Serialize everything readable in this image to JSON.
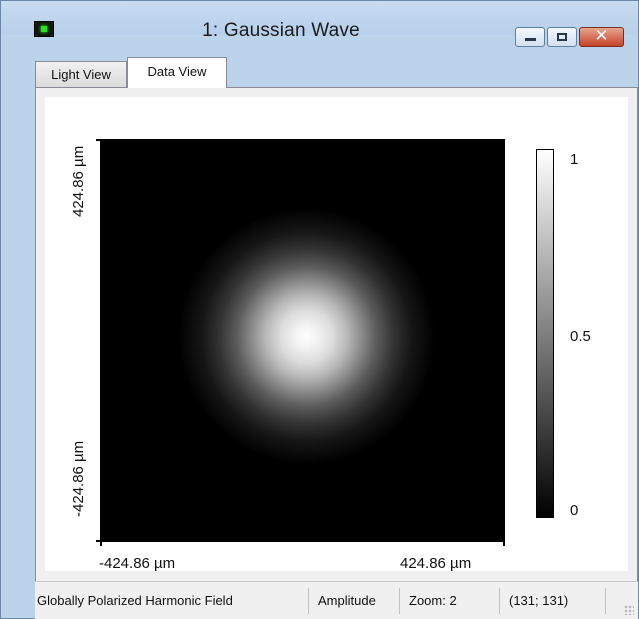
{
  "window": {
    "title": "1: Gaussian Wave",
    "icon": "green-led-window-icon",
    "controls": {
      "minimize_icon": "minimize-icon",
      "maximize_icon": "maximize-icon",
      "close_glyph": "✕"
    }
  },
  "tabs": [
    {
      "label": "Light View",
      "active": false
    },
    {
      "label": "Data View",
      "active": true
    }
  ],
  "plot": {
    "y_axis": {
      "top_label": "424.86 µm",
      "bottom_label": "-424.86 µm"
    },
    "x_axis": {
      "left_label": "-424.86 µm",
      "right_label": "424.86 µm"
    },
    "colorbar": {
      "max_label": "1",
      "mid_label": "0.5",
      "min_label": "0",
      "colors": [
        "#ffffff",
        "#000000"
      ]
    }
  },
  "statusbar": {
    "field_type": "Globally Polarized Harmonic Field",
    "quantity": "Amplitude",
    "zoom": "Zoom: 2",
    "coords": "(131; 131)"
  }
}
